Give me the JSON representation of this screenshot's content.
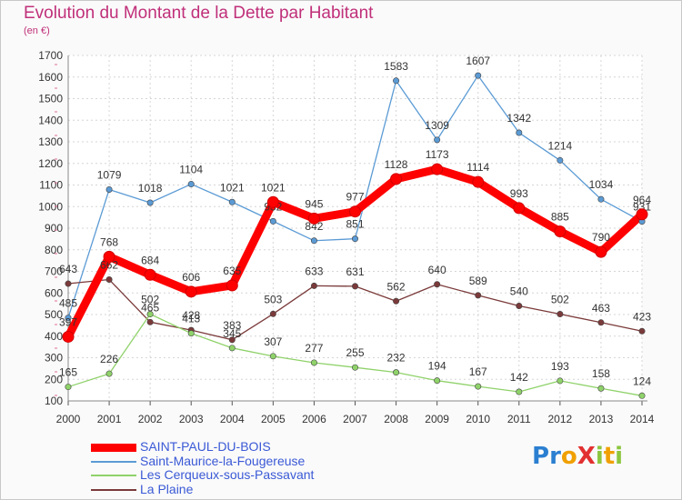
{
  "title": "Evolution du Montant de la Dette par Habitant",
  "subtitle": "(en €)",
  "logo": "ProXiti",
  "chart_data": {
    "type": "line",
    "x": [
      2000,
      2001,
      2002,
      2003,
      2004,
      2005,
      2006,
      2007,
      2008,
      2009,
      2010,
      2011,
      2012,
      2013,
      2014
    ],
    "ylim": [
      100,
      1700
    ],
    "yticks": [
      100,
      200,
      300,
      400,
      500,
      600,
      700,
      800,
      900,
      1000,
      1100,
      1200,
      1300,
      1400,
      1500,
      1600,
      1700
    ],
    "grid": true,
    "legend_position": "bottom-left",
    "series": [
      {
        "name": "SAINT-PAUL-DU-BOIS",
        "color": "#ff0000",
        "values": [
          397,
          768,
          684,
          606,
          635,
          1021,
          945,
          977,
          1128,
          1173,
          1114,
          993,
          885,
          790,
          964
        ]
      },
      {
        "name": "Saint-Maurice-la-Fougereuse",
        "color": "#5b9bd5",
        "values": [
          485,
          1079,
          1018,
          1104,
          1021,
          932,
          842,
          851,
          1583,
          1309,
          1607,
          1342,
          1214,
          1034,
          931
        ]
      },
      {
        "name": "Les Cerqueux-sous-Passavant",
        "color": "#8fd26a",
        "values": [
          165,
          226,
          502,
          413,
          345,
          307,
          277,
          255,
          232,
          194,
          167,
          142,
          193,
          158,
          124
        ]
      },
      {
        "name": "La Plaine",
        "color": "#7b3a3a",
        "values": [
          643,
          662,
          465,
          428,
          383,
          503,
          633,
          631,
          562,
          640,
          589,
          540,
          502,
          463,
          423
        ]
      }
    ]
  }
}
